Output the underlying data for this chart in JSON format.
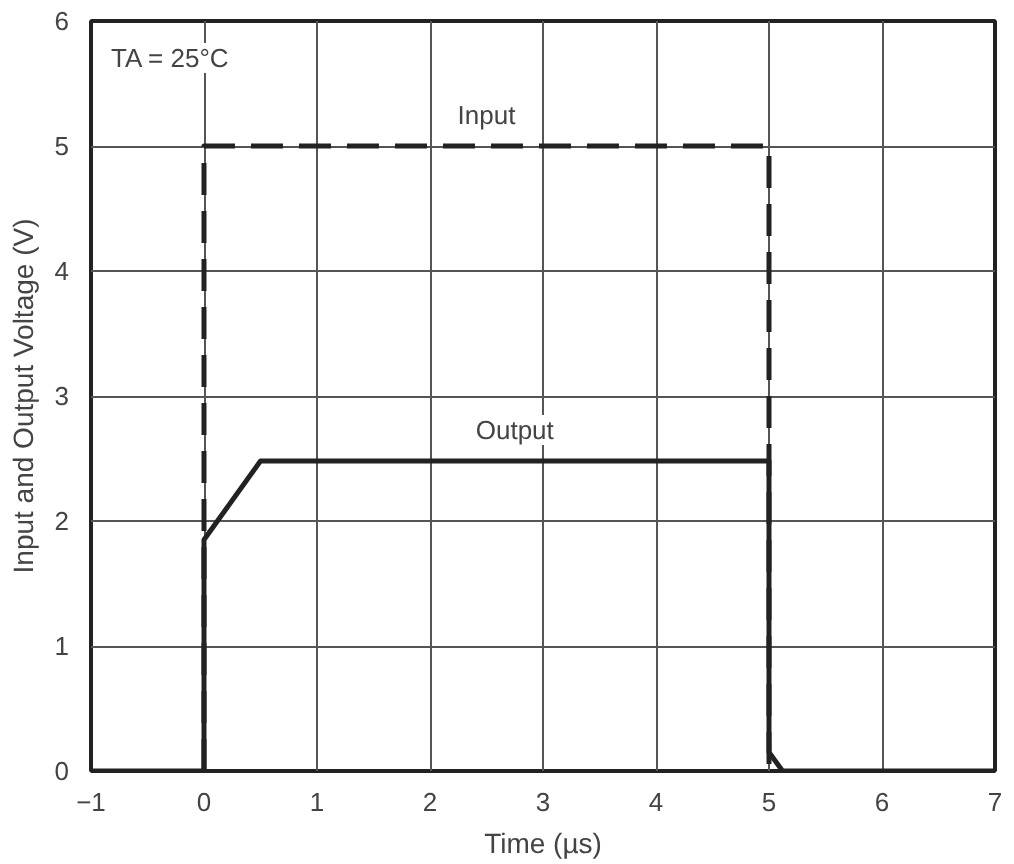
{
  "chart_data": {
    "type": "line",
    "xlabel": "Time (µs)",
    "ylabel": "Input and Output Voltage (V)",
    "xlim": [
      -1,
      7
    ],
    "ylim": [
      0,
      6
    ],
    "xticks": [
      {
        "value": -1,
        "label": "−1"
      },
      0,
      1,
      2,
      3,
      4,
      5,
      6,
      7
    ],
    "yticks": [
      0,
      1,
      2,
      3,
      4,
      5,
      6
    ],
    "grid": true,
    "annotations": [
      "TA = 25°C"
    ],
    "series": [
      {
        "name": "Input",
        "color": "#222222",
        "line_style": "dashed",
        "x": [
          0,
          0,
          5,
          5
        ],
        "values": [
          0,
          5,
          5,
          0
        ]
      },
      {
        "name": "Output",
        "color": "#222222",
        "line_style": "solid",
        "x": [
          -1,
          0,
          0,
          0.5,
          5,
          5,
          5.12,
          7
        ],
        "values": [
          0,
          0,
          1.85,
          2.48,
          2.48,
          0.15,
          0,
          0
        ]
      }
    ]
  }
}
